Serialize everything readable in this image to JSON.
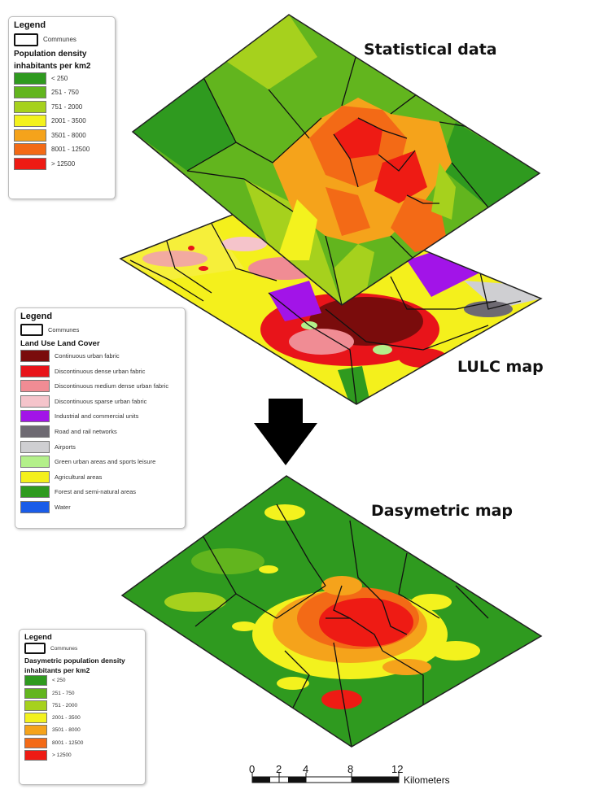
{
  "titles": {
    "statistical": "Statistical data",
    "lulc": "LULC map",
    "dasymetric": "Dasymetric map"
  },
  "legend_population": {
    "title": "Legend",
    "communes_label": "Communes",
    "heading": "Population density",
    "subheading": "inhabitants per km2",
    "classes": [
      {
        "label": "< 250",
        "color": "#2f9a1f"
      },
      {
        "label": "251 - 750",
        "color": "#62b51e"
      },
      {
        "label": "751 - 2000",
        "color": "#a6d11d"
      },
      {
        "label": "2001 - 3500",
        "color": "#f3f21e"
      },
      {
        "label": "3501 - 8000",
        "color": "#f5a31b"
      },
      {
        "label": "8001 - 12500",
        "color": "#f36a16"
      },
      {
        "label": "> 12500",
        "color": "#ee1b14"
      }
    ]
  },
  "legend_lulc": {
    "title": "Legend",
    "communes_label": "Communes",
    "heading": "Land Use Land Cover",
    "classes": [
      {
        "label": "Continuous urban fabric",
        "color": "#7a0c0c"
      },
      {
        "label": "Discontinuous dense urban fabric",
        "color": "#e8141a"
      },
      {
        "label": "Discontinuous medium dense urban fabric",
        "color": "#f08c94"
      },
      {
        "label": "Discontinuous sparse urban fabric",
        "color": "#f5c4cb"
      },
      {
        "label": "Industrial and commercial units",
        "color": "#a214e8"
      },
      {
        "label": "Road and rail networks",
        "color": "#6e6a72"
      },
      {
        "label": "Airports",
        "color": "#cfcfd2"
      },
      {
        "label": "Green urban areas and sports leisure",
        "color": "#b3f08a"
      },
      {
        "label": "Agricultural areas",
        "color": "#f4f01c"
      },
      {
        "label": "Forest and semi-natural areas",
        "color": "#2f9a1f"
      },
      {
        "label": "Water",
        "color": "#1a5ce8"
      }
    ]
  },
  "legend_dasymetric": {
    "title": "Legend",
    "communes_label": "Communes",
    "heading": "Dasymetric population density",
    "subheading": "inhabitants per km2",
    "classes": [
      {
        "label": "< 250",
        "color": "#2f9a1f"
      },
      {
        "label": "251 - 750",
        "color": "#62b51e"
      },
      {
        "label": "751 - 2000",
        "color": "#a6d11d"
      },
      {
        "label": "2001 - 3500",
        "color": "#f3f21e"
      },
      {
        "label": "3501 - 8000",
        "color": "#f5a31b"
      },
      {
        "label": "8001 - 12500",
        "color": "#f36a16"
      },
      {
        "label": "> 12500",
        "color": "#ee1b14"
      }
    ]
  },
  "scale_bar": {
    "ticks": [
      "0",
      "2",
      "4",
      "8",
      "12"
    ],
    "unit": "Kilometers"
  }
}
